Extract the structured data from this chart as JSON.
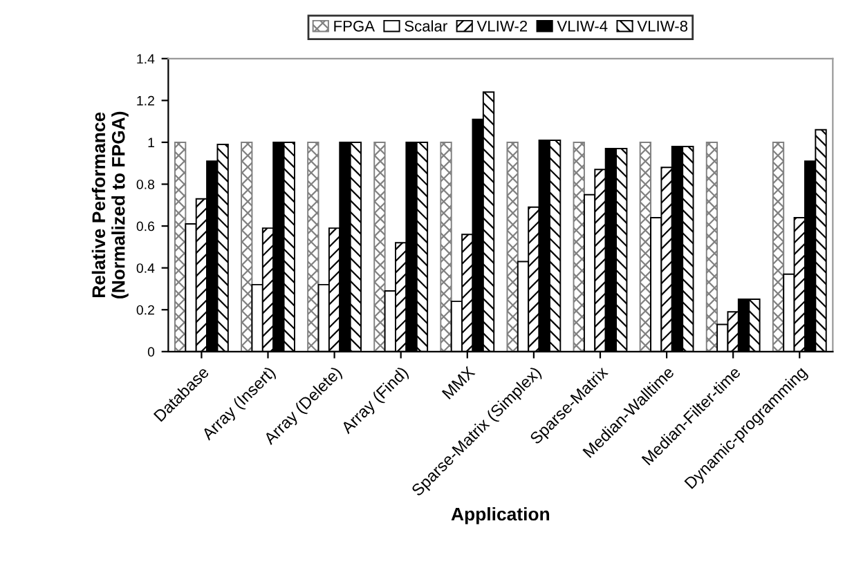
{
  "chart_data": {
    "type": "bar",
    "xlabel": "Application",
    "ylabel": "Relative Performance\n(Normalized to FPGA)",
    "categories": [
      "Database",
      "Array (Insert)",
      "Array (Delete)",
      "Array (Find)",
      "MMX",
      "Sparse-Matrix (Simplex)",
      "Sparse-Matrix",
      "Median-Walltime",
      "Median-Filter-time",
      "Dynamic-programming"
    ],
    "series": [
      {
        "name": "FPGA",
        "color": "#808080",
        "values": [
          1,
          1,
          1,
          1,
          1,
          1,
          1,
          1,
          1,
          1
        ]
      },
      {
        "name": "Scalar",
        "color": "#ffffff",
        "values": [
          0.61,
          0.32,
          0.32,
          0.29,
          0.24,
          0.43,
          0.75,
          0.64,
          0.13,
          0.37
        ]
      },
      {
        "name": "VLIW-2",
        "color": "#000000",
        "values": [
          0.73,
          0.59,
          0.59,
          0.52,
          0.56,
          0.69,
          0.87,
          0.88,
          0.19,
          0.64
        ]
      },
      {
        "name": "VLIW-4",
        "color": "#000000",
        "values": [
          0.91,
          1,
          1,
          1,
          1.11,
          1.01,
          0.97,
          0.98,
          0.25,
          0.91
        ]
      },
      {
        "name": "VLIW-8",
        "color": "#000000",
        "values": [
          0.99,
          1,
          1,
          1,
          1.24,
          1.01,
          0.97,
          0.98,
          0.25,
          1.06
        ]
      }
    ],
    "ylim": [
      0,
      1.4
    ],
    "yticks": [
      0,
      0.2,
      0.4,
      0.6,
      0.8,
      1,
      1.2,
      1.4
    ],
    "grid": false,
    "legend": "top"
  }
}
